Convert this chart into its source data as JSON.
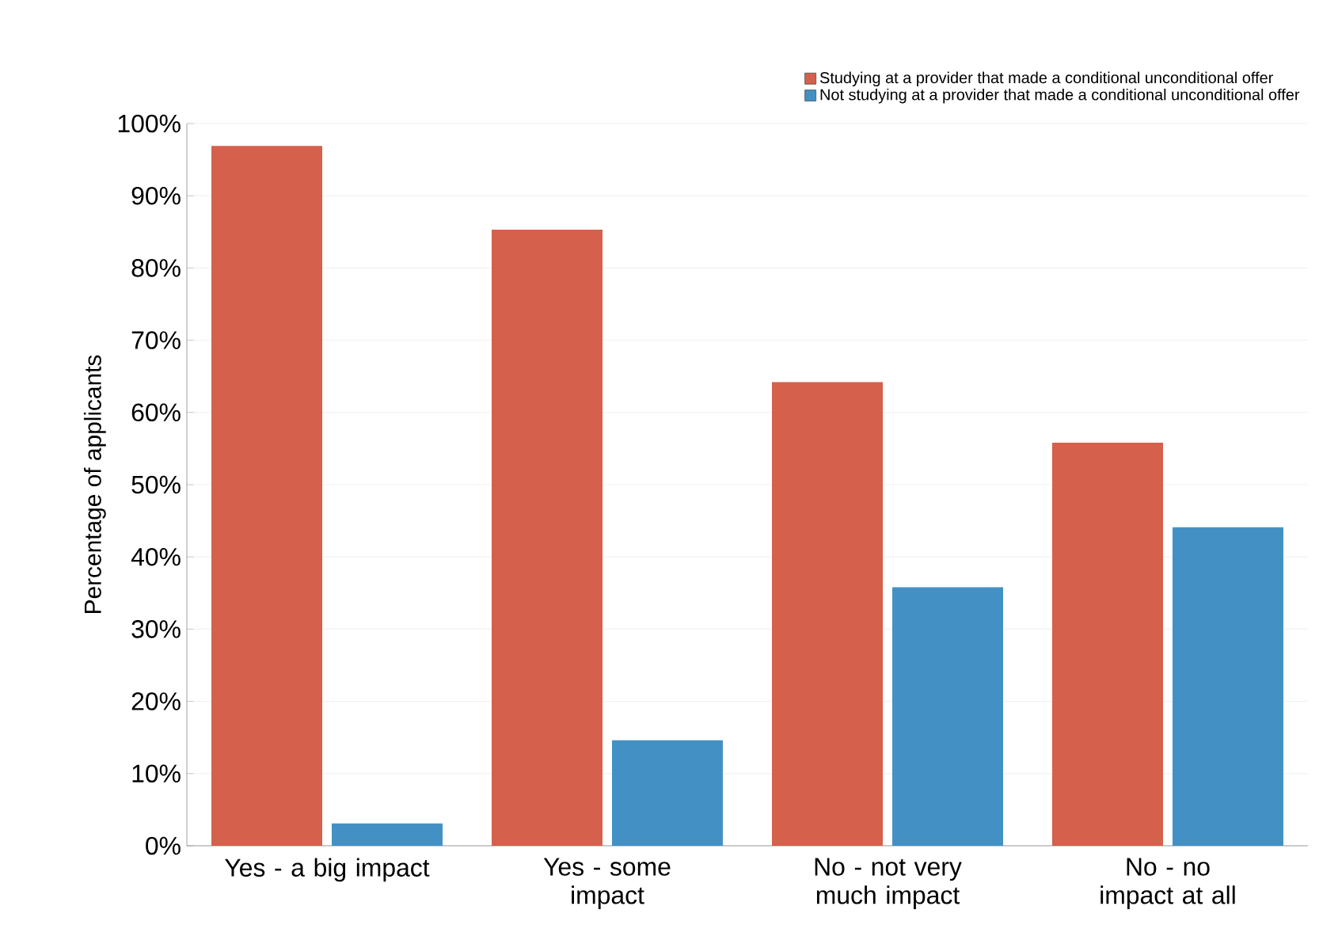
{
  "chart_data": {
    "type": "bar",
    "ylabel": "Percentage of applicants",
    "categories": [
      "Yes - a big impact",
      "Yes - some impact",
      "No - not very much impact",
      "No - no impact at all"
    ],
    "series": [
      {
        "name": "Studying at a provider that made a conditional unconditional offer",
        "color": "#d5604b",
        "values": [
          96.9,
          85.3,
          64.2,
          55.8
        ]
      },
      {
        "name": "Not studying at a provider that made a conditional unconditional offer",
        "color": "#4391c4",
        "values": [
          3.1,
          14.6,
          35.8,
          44.1
        ]
      }
    ],
    "ylim": [
      0,
      100
    ],
    "yticks": [
      {
        "value": 0,
        "label": "0%"
      },
      {
        "value": 10,
        "label": "10%"
      },
      {
        "value": 20,
        "label": "20%"
      },
      {
        "value": 30,
        "label": "30%"
      },
      {
        "value": 40,
        "label": "40%"
      },
      {
        "value": 50,
        "label": "50%"
      },
      {
        "value": 60,
        "label": "60%"
      },
      {
        "value": 70,
        "label": "70%"
      },
      {
        "value": 80,
        "label": "80%"
      },
      {
        "value": 90,
        "label": "90%"
      },
      {
        "value": 100,
        "label": "100%"
      }
    ],
    "grid": "y",
    "legend": "top right"
  }
}
